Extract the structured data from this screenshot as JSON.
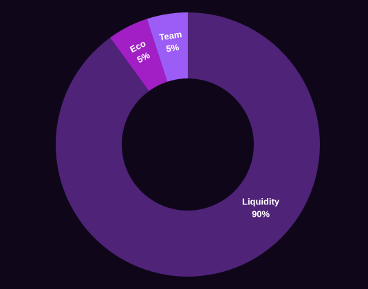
{
  "chart_data": {
    "type": "donut",
    "categories": [
      "Liquidity",
      "Eco",
      "Team"
    ],
    "values": [
      90,
      5,
      5
    ],
    "value_labels": [
      "90%",
      "5%",
      "5%"
    ],
    "colors": [
      "#4e2378",
      "#a11fc4",
      "#9c5cf6"
    ]
  }
}
